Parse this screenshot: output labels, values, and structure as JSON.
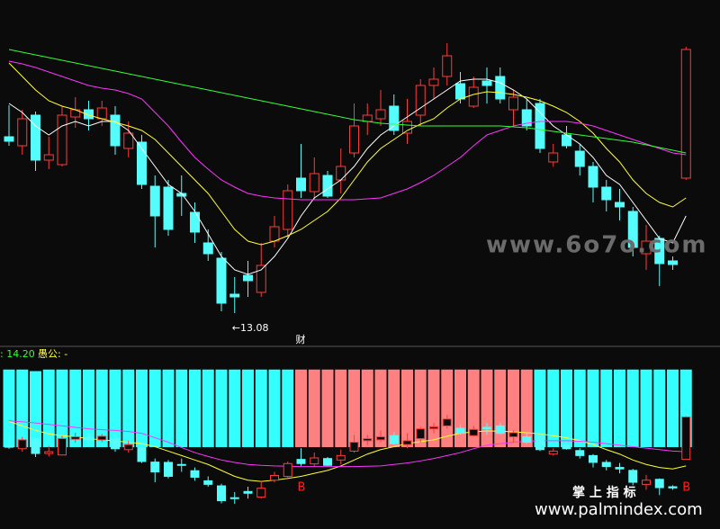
{
  "chart_data": {
    "type": "candlestick",
    "ylim": [
      12.71,
      16.56
    ],
    "up_color": "#ff3b3b",
    "down_color": "#54fcfc",
    "open": [
      15.04,
      14.94,
      15.28,
      14.78,
      14.73,
      15.26,
      15.34,
      15.24,
      15.28,
      14.91,
      14.98,
      14.49,
      14.48,
      14.41,
      14.2,
      13.86,
      13.69,
      13.29,
      13.5,
      13.31,
      13.88,
      14.01,
      14.58,
      14.43,
      14.61,
      14.56,
      14.86,
      15.21,
      15.24,
      15.38,
      15.08,
      15.28,
      15.61,
      15.71,
      15.63,
      15.38,
      15.66,
      15.71,
      15.34,
      15.34,
      15.41,
      14.76,
      15.06,
      14.88,
      14.71,
      14.48,
      14.31,
      14.21,
      13.74,
      13.91,
      13.66,
      14.58
    ],
    "close": [
      14.99,
      15.24,
      14.78,
      14.84,
      15.28,
      15.34,
      15.24,
      15.36,
      14.94,
      15.08,
      14.51,
      14.16,
      14.01,
      14.38,
      13.98,
      13.74,
      13.19,
      13.26,
      13.44,
      13.61,
      14.04,
      14.44,
      14.44,
      14.63,
      14.38,
      14.71,
      15.16,
      15.28,
      15.34,
      15.11,
      15.21,
      15.61,
      15.68,
      15.94,
      15.46,
      15.59,
      15.61,
      15.46,
      15.48,
      15.16,
      14.91,
      14.86,
      14.94,
      14.71,
      14.48,
      14.34,
      14.26,
      13.81,
      13.88,
      13.63,
      13.62,
      16.01
    ],
    "high": [
      15.39,
      15.34,
      15.32,
      15.04,
      15.38,
      15.48,
      15.44,
      15.44,
      15.38,
      15.21,
      15.06,
      14.61,
      14.56,
      14.61,
      14.31,
      14.01,
      13.76,
      13.48,
      13.66,
      13.86,
      14.16,
      14.51,
      14.96,
      14.81,
      14.66,
      14.91,
      15.41,
      15.41,
      15.56,
      15.51,
      15.46,
      15.68,
      15.81,
      16.08,
      15.76,
      15.71,
      15.81,
      15.81,
      15.56,
      15.46,
      15.46,
      14.96,
      15.16,
      14.96,
      14.76,
      14.56,
      14.46,
      14.26,
      14.06,
      13.94,
      13.71,
      16.04
    ],
    "low": [
      14.94,
      14.84,
      14.66,
      14.68,
      14.71,
      15.14,
      15.11,
      15.16,
      14.84,
      14.81,
      14.46,
      13.81,
      13.94,
      14.16,
      13.86,
      13.66,
      13.1,
      13.08,
      13.26,
      13.26,
      13.81,
      13.91,
      14.36,
      14.34,
      14.36,
      14.41,
      14.81,
      15.06,
      15.16,
      15.06,
      14.96,
      15.16,
      15.46,
      15.61,
      15.41,
      15.36,
      15.41,
      15.41,
      15.16,
      15.11,
      14.86,
      14.71,
      14.91,
      14.61,
      14.31,
      14.21,
      14.11,
      13.71,
      13.56,
      13.38,
      13.56,
      14.56
    ],
    "lines": [
      {
        "color": "#ffffff",
        "values": [
          15.41,
          15.31,
          15.16,
          15.06,
          15.16,
          15.21,
          15.16,
          15.21,
          15.21,
          15.11,
          14.91,
          14.71,
          14.51,
          14.41,
          14.21,
          13.96,
          13.71,
          13.56,
          13.51,
          13.56,
          13.71,
          13.91,
          14.16,
          14.36,
          14.46,
          14.56,
          14.71,
          14.91,
          15.06,
          15.16,
          15.26,
          15.36,
          15.46,
          15.56,
          15.66,
          15.68,
          15.68,
          15.64,
          15.56,
          15.46,
          15.31,
          15.16,
          15.06,
          14.96,
          14.81,
          14.61,
          14.51,
          14.31,
          14.11,
          13.91,
          13.86,
          14.16
        ]
      },
      {
        "color": "#ffff33",
        "values": [
          15.86,
          15.71,
          15.56,
          15.44,
          15.38,
          15.34,
          15.28,
          15.24,
          15.2,
          15.16,
          15.11,
          15.01,
          14.86,
          14.71,
          14.56,
          14.41,
          14.21,
          14.01,
          13.88,
          13.84,
          13.88,
          13.94,
          14.01,
          14.11,
          14.21,
          14.36,
          14.56,
          14.76,
          14.91,
          15.01,
          15.11,
          15.18,
          15.24,
          15.36,
          15.46,
          15.51,
          15.54,
          15.53,
          15.51,
          15.48,
          15.44,
          15.38,
          15.31,
          15.21,
          15.08,
          14.91,
          14.76,
          14.56,
          14.41,
          14.31,
          14.26,
          14.36
        ]
      },
      {
        "color": "#ff33ff",
        "values": [
          15.88,
          15.85,
          15.81,
          15.76,
          15.71,
          15.66,
          15.61,
          15.58,
          15.56,
          15.52,
          15.46,
          15.31,
          15.16,
          14.98,
          14.81,
          14.68,
          14.56,
          14.48,
          14.41,
          14.38,
          14.36,
          14.35,
          14.34,
          14.34,
          14.34,
          14.34,
          14.34,
          14.35,
          14.36,
          14.41,
          14.46,
          14.53,
          14.61,
          14.71,
          14.81,
          14.94,
          15.06,
          15.11,
          15.16,
          15.19,
          15.21,
          15.21,
          15.21,
          15.19,
          15.16,
          15.11,
          15.06,
          15.01,
          14.96,
          14.91,
          14.86,
          14.84
        ]
      },
      {
        "color": "#33ff33",
        "values": [
          16.01,
          15.98,
          15.95,
          15.92,
          15.89,
          15.86,
          15.83,
          15.8,
          15.77,
          15.74,
          15.71,
          15.68,
          15.65,
          15.62,
          15.59,
          15.56,
          15.53,
          15.5,
          15.47,
          15.44,
          15.41,
          15.38,
          15.35,
          15.32,
          15.29,
          15.26,
          15.23,
          15.21,
          15.19,
          15.18,
          15.17,
          15.16,
          15.16,
          15.16,
          15.16,
          15.16,
          15.16,
          15.16,
          15.15,
          15.14,
          15.12,
          15.1,
          15.08,
          15.06,
          15.04,
          15.02,
          15.0,
          14.98,
          14.95,
          14.92,
          14.89,
          14.86
        ]
      }
    ],
    "low_label": {
      "value": 13.08,
      "label": "←13.08"
    },
    "events": [
      {
        "index": 22,
        "label": "财"
      }
    ],
    "indicator": {
      "label": ": 14.20",
      "name": "愚公: -",
      "ylim": [
        0,
        100
      ],
      "values": [
        98,
        98,
        96,
        98,
        98,
        98,
        98,
        98,
        98,
        98,
        98,
        98,
        98,
        98,
        98,
        98,
        98,
        98,
        98,
        98,
        98,
        98,
        98,
        98,
        98,
        98,
        98,
        98,
        98,
        98,
        98,
        98,
        98,
        98,
        98,
        98,
        98,
        98,
        98,
        98,
        98,
        98,
        98,
        98,
        98,
        98,
        98,
        98,
        98,
        98,
        98,
        98
      ],
      "colors": [
        "#33ffff",
        "#33ffff",
        "#33ffff",
        "#33ffff",
        "#33ffff",
        "#33ffff",
        "#33ffff",
        "#33ffff",
        "#33ffff",
        "#33ffff",
        "#33ffff",
        "#33ffff",
        "#33ffff",
        "#33ffff",
        "#33ffff",
        "#33ffff",
        "#33ffff",
        "#33ffff",
        "#33ffff",
        "#33ffff",
        "#33ffff",
        "#33ffff",
        "#ff8080",
        "#ff8080",
        "#ff8080",
        "#ff8080",
        "#ff8080",
        "#ff8080",
        "#ff8080",
        "#ff8080",
        "#ff8080",
        "#ff8080",
        "#ff8080",
        "#ff8080",
        "#ff8080",
        "#ff8080",
        "#ff8080",
        "#ff8080",
        "#ff8080",
        "#ff8080",
        "#33ffff",
        "#33ffff",
        "#33ffff",
        "#33ffff",
        "#33ffff",
        "#33ffff",
        "#33ffff",
        "#33ffff",
        "#33ffff",
        "#33ffff",
        "#33ffff",
        "#33ffff"
      ],
      "signals": [
        {
          "index": 22,
          "label": "B"
        },
        {
          "index": 51,
          "label": "B"
        }
      ]
    }
  },
  "watermarks": [
    "www.6o7o.com",
    "掌 上 指 标",
    "www.palmindex.com"
  ]
}
